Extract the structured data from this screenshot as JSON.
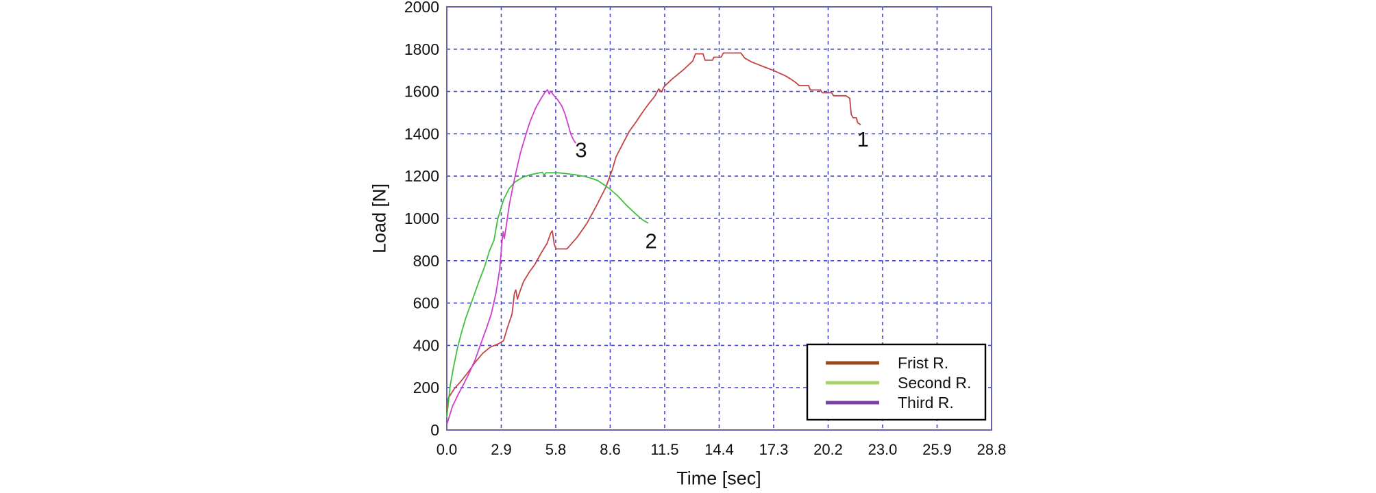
{
  "chart_data": {
    "type": "line",
    "title": "",
    "xlabel": "Time [sec]",
    "ylabel": "Load [N]",
    "xlim": [
      0,
      28.8
    ],
    "ylim": [
      0,
      2000
    ],
    "grid": "dashed blue-violet gridlines at every tick, solid border frame",
    "x_ticks": [
      {
        "value": 0.0,
        "label": "0.0"
      },
      {
        "value": 2.88,
        "label": "2.9"
      },
      {
        "value": 5.76,
        "label": "5.8"
      },
      {
        "value": 8.64,
        "label": "8.6"
      },
      {
        "value": 11.52,
        "label": "11.5"
      },
      {
        "value": 14.4,
        "label": "14.4"
      },
      {
        "value": 17.28,
        "label": "17.3"
      },
      {
        "value": 20.16,
        "label": "20.2"
      },
      {
        "value": 23.04,
        "label": "23.0"
      },
      {
        "value": 25.92,
        "label": "25.9"
      },
      {
        "value": 28.8,
        "label": "28.8"
      }
    ],
    "y_ticks": [
      {
        "value": 0,
        "label": "0"
      },
      {
        "value": 200,
        "label": "200"
      },
      {
        "value": 400,
        "label": "400"
      },
      {
        "value": 600,
        "label": "600"
      },
      {
        "value": 800,
        "label": "800"
      },
      {
        "value": 1000,
        "label": "1000"
      },
      {
        "value": 1200,
        "label": "1200"
      },
      {
        "value": 1400,
        "label": "1400"
      },
      {
        "value": 1600,
        "label": "1600"
      },
      {
        "value": 1800,
        "label": "1800"
      },
      {
        "value": 2000,
        "label": "2000"
      }
    ],
    "legend": {
      "position": "bottom-right",
      "entries": [
        {
          "label": "Frist R.",
          "swatch_color": "#9a4a1c"
        },
        {
          "label": "Second R.",
          "swatch_color": "#a6d46a"
        },
        {
          "label": "Third R.",
          "swatch_color": "#7b3fa5"
        }
      ]
    },
    "annotations": [
      {
        "text": "1",
        "t": 22.0,
        "v": 1340
      },
      {
        "text": "2",
        "t": 10.8,
        "v": 860
      },
      {
        "text": "3",
        "t": 7.1,
        "v": 1290
      }
    ],
    "series": [
      {
        "name": "Frist R.",
        "color": "#c24343",
        "points": [
          [
            0,
            85
          ],
          [
            0.08,
            150
          ],
          [
            0.4,
            195
          ],
          [
            0.7,
            225
          ],
          [
            1.1,
            270
          ],
          [
            1.5,
            320
          ],
          [
            1.9,
            362
          ],
          [
            2.3,
            392
          ],
          [
            2.7,
            406
          ],
          [
            3.0,
            422
          ],
          [
            3.2,
            482
          ],
          [
            3.45,
            548
          ],
          [
            3.58,
            648
          ],
          [
            3.65,
            662
          ],
          [
            3.73,
            618
          ],
          [
            3.88,
            658
          ],
          [
            4.05,
            700
          ],
          [
            4.35,
            745
          ],
          [
            4.65,
            782
          ],
          [
            5.0,
            838
          ],
          [
            5.3,
            882
          ],
          [
            5.5,
            932
          ],
          [
            5.58,
            941
          ],
          [
            5.68,
            878
          ],
          [
            5.78,
            856
          ],
          [
            6.35,
            856
          ],
          [
            6.55,
            876
          ],
          [
            6.9,
            912
          ],
          [
            7.4,
            976
          ],
          [
            7.9,
            1058
          ],
          [
            8.4,
            1146
          ],
          [
            8.75,
            1230
          ],
          [
            8.95,
            1292
          ],
          [
            9.3,
            1352
          ],
          [
            9.65,
            1412
          ],
          [
            10.0,
            1455
          ],
          [
            10.35,
            1502
          ],
          [
            10.7,
            1545
          ],
          [
            11.0,
            1578
          ],
          [
            11.2,
            1612
          ],
          [
            11.35,
            1598
          ],
          [
            11.5,
            1624
          ],
          [
            11.9,
            1658
          ],
          [
            12.5,
            1702
          ],
          [
            13.0,
            1744
          ],
          [
            13.15,
            1778
          ],
          [
            13.55,
            1778
          ],
          [
            13.65,
            1748
          ],
          [
            14.05,
            1748
          ],
          [
            14.12,
            1762
          ],
          [
            14.5,
            1762
          ],
          [
            14.62,
            1782
          ],
          [
            15.55,
            1782
          ],
          [
            15.75,
            1758
          ],
          [
            16.1,
            1740
          ],
          [
            16.5,
            1726
          ],
          [
            16.9,
            1712
          ],
          [
            17.25,
            1700
          ],
          [
            17.55,
            1688
          ],
          [
            17.9,
            1674
          ],
          [
            18.2,
            1658
          ],
          [
            18.45,
            1642
          ],
          [
            18.62,
            1628
          ],
          [
            19.12,
            1628
          ],
          [
            19.22,
            1607
          ],
          [
            19.75,
            1607
          ],
          [
            19.85,
            1594
          ],
          [
            20.35,
            1594
          ],
          [
            20.45,
            1580
          ],
          [
            21.1,
            1580
          ],
          [
            21.3,
            1568
          ],
          [
            21.38,
            1492
          ],
          [
            21.48,
            1476
          ],
          [
            21.65,
            1476
          ],
          [
            21.72,
            1452
          ],
          [
            21.88,
            1443
          ]
        ]
      },
      {
        "name": "Second R.",
        "color": "#3fbf3f",
        "points": [
          [
            0,
            60
          ],
          [
            0.18,
            210
          ],
          [
            0.35,
            295
          ],
          [
            0.55,
            382
          ],
          [
            0.75,
            452
          ],
          [
            1.0,
            528
          ],
          [
            1.3,
            602
          ],
          [
            1.7,
            702
          ],
          [
            2.0,
            772
          ],
          [
            2.25,
            845
          ],
          [
            2.5,
            898
          ],
          [
            2.7,
            1000
          ],
          [
            3.0,
            1088
          ],
          [
            3.3,
            1142
          ],
          [
            3.6,
            1172
          ],
          [
            4.0,
            1194
          ],
          [
            4.4,
            1206
          ],
          [
            4.8,
            1214
          ],
          [
            5.05,
            1218
          ],
          [
            5.15,
            1205
          ],
          [
            5.25,
            1216
          ],
          [
            5.9,
            1216
          ],
          [
            6.3,
            1212
          ],
          [
            6.8,
            1206
          ],
          [
            7.3,
            1198
          ],
          [
            7.7,
            1188
          ],
          [
            8.0,
            1178
          ],
          [
            8.3,
            1160
          ],
          [
            8.6,
            1140
          ],
          [
            9.0,
            1110
          ],
          [
            9.5,
            1062
          ],
          [
            10.1,
            1012
          ],
          [
            10.4,
            990
          ],
          [
            10.65,
            978
          ]
        ]
      },
      {
        "name": "Third R.",
        "color": "#cc3fcc",
        "points": [
          [
            0,
            25
          ],
          [
            0.3,
            112
          ],
          [
            0.6,
            168
          ],
          [
            0.9,
            218
          ],
          [
            1.2,
            272
          ],
          [
            1.5,
            332
          ],
          [
            1.8,
            408
          ],
          [
            2.1,
            482
          ],
          [
            2.35,
            548
          ],
          [
            2.6,
            648
          ],
          [
            2.8,
            762
          ],
          [
            2.92,
            892
          ],
          [
            2.98,
            938
          ],
          [
            3.04,
            905
          ],
          [
            3.14,
            962
          ],
          [
            3.3,
            1062
          ],
          [
            3.5,
            1152
          ],
          [
            3.7,
            1235
          ],
          [
            3.9,
            1312
          ],
          [
            4.15,
            1388
          ],
          [
            4.4,
            1458
          ],
          [
            4.7,
            1522
          ],
          [
            5.0,
            1570
          ],
          [
            5.2,
            1596
          ],
          [
            5.32,
            1608
          ],
          [
            5.42,
            1588
          ],
          [
            5.5,
            1602
          ],
          [
            5.65,
            1582
          ],
          [
            5.85,
            1562
          ],
          [
            6.08,
            1532
          ],
          [
            6.25,
            1494
          ],
          [
            6.4,
            1448
          ],
          [
            6.55,
            1400
          ],
          [
            6.7,
            1372
          ],
          [
            6.82,
            1355
          ]
        ]
      }
    ]
  },
  "colors": {
    "grid": "#4646c2",
    "border": "#6464ae",
    "text": "#111111",
    "legend_border": "#000000",
    "background": "#ffffff"
  }
}
